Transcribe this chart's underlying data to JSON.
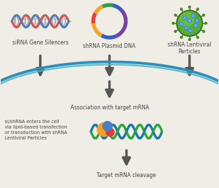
{
  "bg_color": "#f0ece6",
  "labels": {
    "sirna": "siRNA Gene Silencers",
    "shrna_plasmid": "shRNA Plasmid DNA",
    "shrna_lenti": "shRNA Lentiviral\nParticles",
    "association": "Association with target mRNA",
    "cleavage": "Target mRNA cleavage",
    "cell_entry": "si/shRNA enters the cell\nvia lipid-based transfection\nor transduction with shRNA\nLentiviral Particles"
  },
  "label_fontsize": 5.5,
  "cell_entry_fontsize": 4.8,
  "arrow_color": "#555555",
  "arc_color_outer": "#2a7fb5",
  "arc_color_inner": "#4ab8c8"
}
